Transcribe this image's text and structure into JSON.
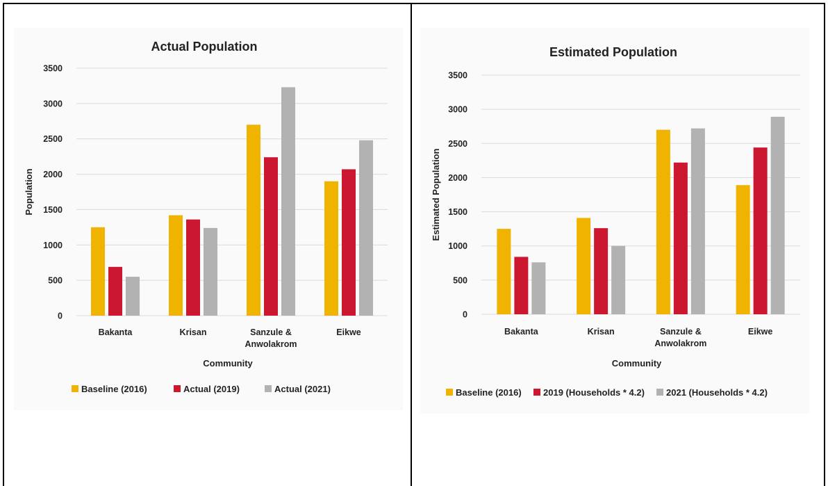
{
  "colors": {
    "baseline": "#f0b400",
    "series2": "#cc1731",
    "series3": "#b2b2b2"
  },
  "chart_data": [
    {
      "type": "bar",
      "title": "Actual Population",
      "xlabel": "Community",
      "ylabel": "Population",
      "ylim": [
        0,
        3500
      ],
      "yticks": [
        "0",
        "500",
        "1000",
        "1500",
        "2000",
        "2500",
        "3000",
        "3500"
      ],
      "grid": true,
      "legend_position": "bottom",
      "categories": [
        [
          "Bakanta"
        ],
        [
          "Krisan"
        ],
        [
          "Sanzule &",
          "Anwolakrom"
        ],
        [
          "Eikwe"
        ]
      ],
      "series": [
        {
          "name": "Baseline (2016)",
          "values": [
            1250,
            1420,
            2700,
            1900
          ]
        },
        {
          "name": "Actual (2019)",
          "values": [
            690,
            1360,
            2240,
            2070
          ]
        },
        {
          "name": "Actual (2021)",
          "values": [
            550,
            1240,
            3230,
            2480
          ]
        }
      ]
    },
    {
      "type": "bar",
      "title": "Estimated Population",
      "xlabel": "Community",
      "ylabel": "Estimated Population",
      "ylim": [
        0,
        3500
      ],
      "yticks": [
        "0",
        "500",
        "1000",
        "1500",
        "2000",
        "2500",
        "3000",
        "3500"
      ],
      "grid": true,
      "legend_position": "bottom",
      "categories": [
        [
          "Bakanta"
        ],
        [
          "Krisan"
        ],
        [
          "Sanzule &",
          "Anwolakrom"
        ],
        [
          "Eikwe"
        ]
      ],
      "series": [
        {
          "name": "Baseline (2016)",
          "values": [
            1250,
            1410,
            2700,
            1890
          ]
        },
        {
          "name": "2019 (Households * 4.2)",
          "values": [
            840,
            1260,
            2220,
            2440
          ]
        },
        {
          "name": "2021 (Households * 4.2)",
          "values": [
            760,
            1000,
            2720,
            2890
          ]
        }
      ]
    }
  ]
}
